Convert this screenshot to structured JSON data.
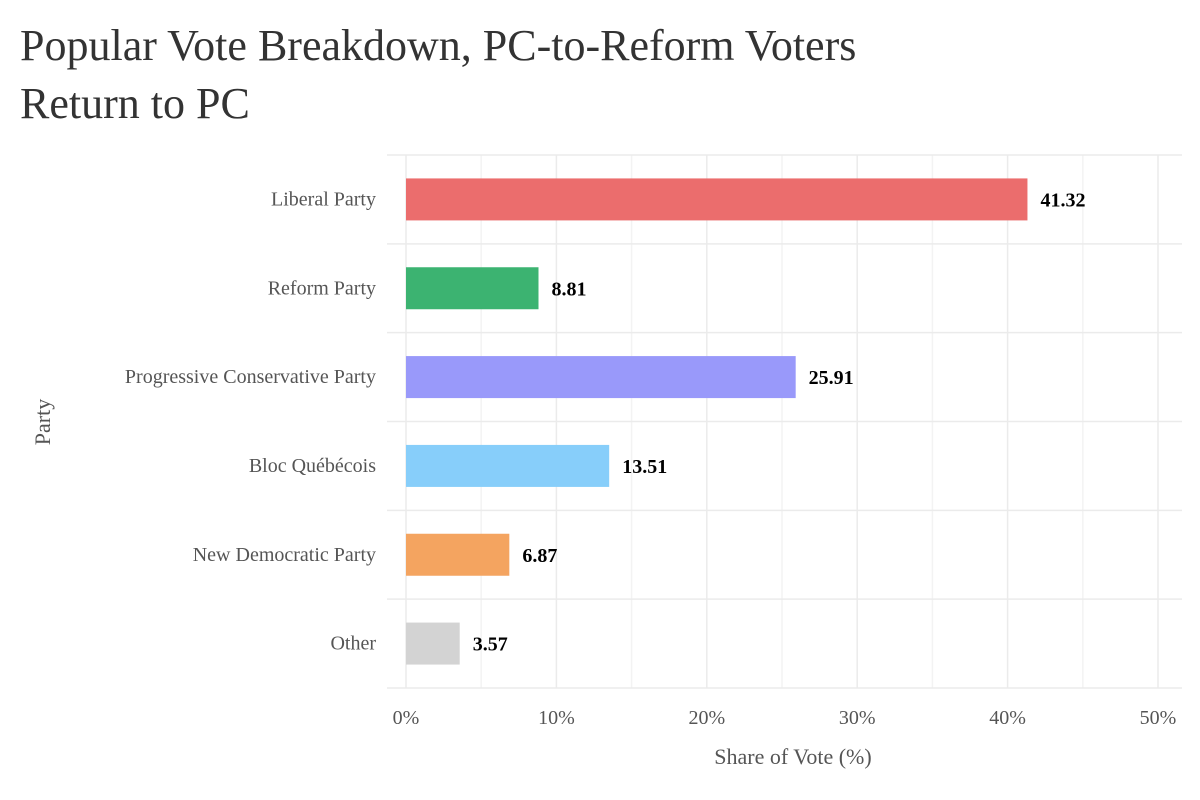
{
  "chart_data": {
    "type": "bar",
    "orientation": "horizontal",
    "title_lines": [
      "Popular Vote Breakdown, PC-to-Reform Voters",
      "Return to PC"
    ],
    "xlabel": "Share of Vote (%)",
    "ylabel": "Party",
    "xlim": [
      0,
      50
    ],
    "xticks": [
      0,
      10,
      20,
      30,
      40,
      50
    ],
    "xtick_labels": [
      "0%",
      "10%",
      "20%",
      "30%",
      "40%",
      "50%"
    ],
    "grid": true,
    "legend": "none",
    "categories": [
      "Liberal Party",
      "Reform Party",
      "Progressive Conservative Party",
      "Bloc Québécois",
      "New Democratic Party",
      "Other"
    ],
    "values": [
      41.32,
      8.81,
      25.91,
      13.51,
      6.87,
      3.57
    ],
    "value_labels": [
      "41.32",
      "8.81",
      "25.91",
      "13.51",
      "6.87",
      "3.57"
    ],
    "colors": [
      "#eb6d6d",
      "#3cb371",
      "#9999fa",
      "#87cefa",
      "#f4a460",
      "#d3d3d3"
    ]
  }
}
